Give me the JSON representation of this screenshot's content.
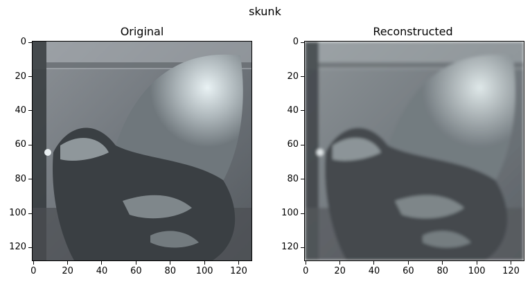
{
  "suptitle": "skunk",
  "panels": [
    {
      "title": "Original"
    },
    {
      "title": "Reconstructed"
    }
  ],
  "axes": {
    "x_ticks": [
      "0",
      "20",
      "40",
      "60",
      "80",
      "100",
      "120"
    ],
    "y_ticks": [
      "0",
      "20",
      "40",
      "60",
      "80",
      "100",
      "120"
    ]
  }
}
